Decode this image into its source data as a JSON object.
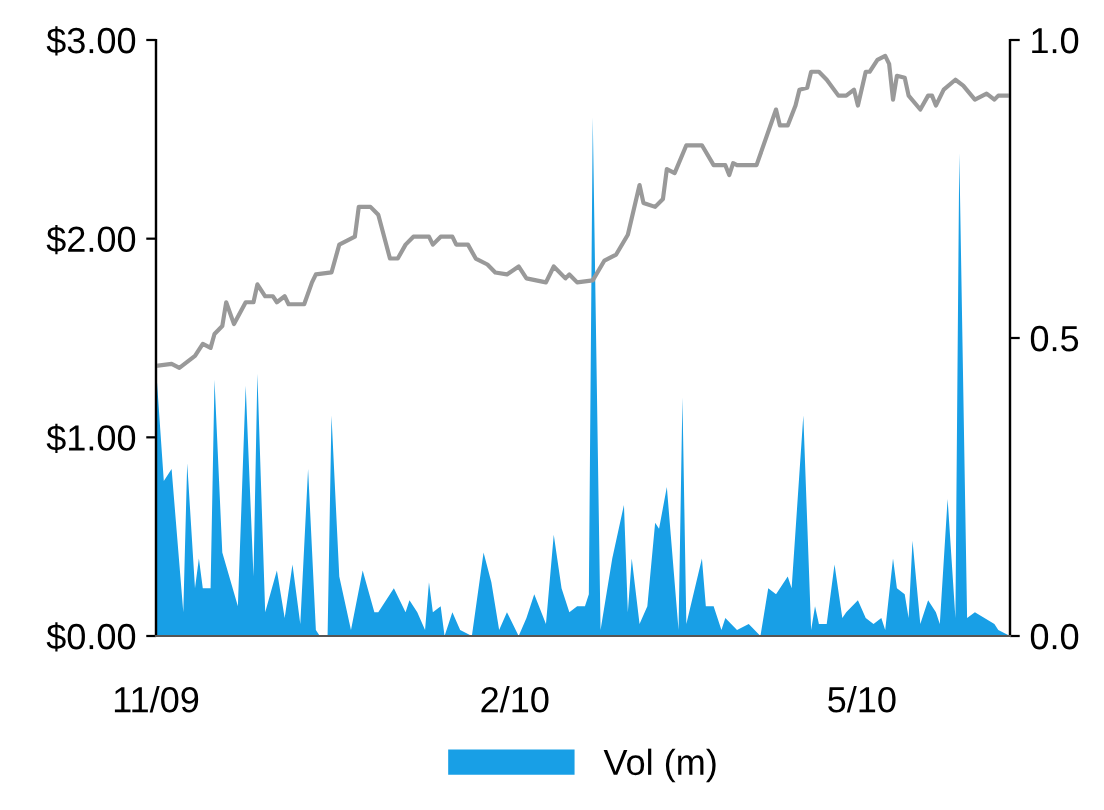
{
  "chart_data": {
    "type": "line",
    "xlim": [
      "2009-11-01",
      "2010-06-08"
    ],
    "xticks": [
      {
        "value": "2009-11-01",
        "label": "11/09"
      },
      {
        "value": "2010-02-01",
        "label": "2/10"
      },
      {
        "value": "2010-05-01",
        "label": "5/10"
      }
    ],
    "ylim": [
      0,
      3
    ],
    "yticks": [
      {
        "value": 0,
        "label": "$0.00"
      },
      {
        "value": 1,
        "label": "$1.00"
      },
      {
        "value": 2,
        "label": "$2.00"
      },
      {
        "value": 3,
        "label": "$3.00"
      }
    ],
    "y2lim": [
      0,
      1
    ],
    "y2ticks": [
      {
        "value": 0,
        "label": "0.0"
      },
      {
        "value": 0.5,
        "label": "0.5"
      },
      {
        "value": 1,
        "label": "1.0"
      }
    ],
    "grid": false,
    "legend": "bottom",
    "marker": "none",
    "line_style": "solid",
    "series": [
      {
        "name": "Vol (m)",
        "type": "area",
        "axis": "y2",
        "color": "#189fe6",
        "x": [
          "2009-11-01",
          "2009-11-03",
          "2009-11-05",
          "2009-11-08",
          "2009-11-09",
          "2009-11-11",
          "2009-11-12",
          "2009-11-13",
          "2009-11-15",
          "2009-11-16",
          "2009-11-18",
          "2009-11-22",
          "2009-11-24",
          "2009-11-26",
          "2009-11-27",
          "2009-11-29",
          "2009-12-02",
          "2009-12-04",
          "2009-12-06",
          "2009-12-08",
          "2009-12-10",
          "2009-12-12",
          "2009-12-13",
          "2009-12-15",
          "2009-12-16",
          "2009-12-18",
          "2009-12-21",
          "2009-12-24",
          "2009-12-27",
          "2009-12-28",
          "2010-01-01",
          "2010-01-04",
          "2010-01-05",
          "2010-01-07",
          "2010-01-09",
          "2010-01-10",
          "2010-01-11",
          "2010-01-13",
          "2010-01-14",
          "2010-01-16",
          "2010-01-18",
          "2010-01-21",
          "2010-01-24",
          "2010-01-26",
          "2010-01-28",
          "2010-01-30",
          "2010-02-02",
          "2010-02-04",
          "2010-02-06",
          "2010-02-09",
          "2010-02-11",
          "2010-02-13",
          "2010-02-15",
          "2010-02-17",
          "2010-02-19",
          "2010-02-20",
          "2010-02-21",
          "2010-02-23",
          "2010-02-26",
          "2010-03-01",
          "2010-03-02",
          "2010-03-03",
          "2010-03-05",
          "2010-03-07",
          "2010-03-09",
          "2010-03-10",
          "2010-03-12",
          "2010-03-13",
          "2010-03-15",
          "2010-03-16",
          "2010-03-17",
          "2010-03-21",
          "2010-03-22",
          "2010-03-24",
          "2010-03-26",
          "2010-03-27",
          "2010-03-30",
          "2010-04-02",
          "2010-04-05",
          "2010-04-07",
          "2010-04-09",
          "2010-04-12",
          "2010-04-13",
          "2010-04-16",
          "2010-04-18",
          "2010-04-19",
          "2010-04-20",
          "2010-04-22",
          "2010-04-24",
          "2010-04-26",
          "2010-04-27",
          "2010-04-30",
          "2010-05-02",
          "2010-05-04",
          "2010-05-06",
          "2010-05-07",
          "2010-05-09",
          "2010-05-10",
          "2010-05-12",
          "2010-05-13",
          "2010-05-14",
          "2010-05-16",
          "2010-05-18",
          "2010-05-20",
          "2010-05-21",
          "2010-05-23",
          "2010-05-25",
          "2010-05-26",
          "2010-05-28",
          "2010-05-30",
          "2010-06-04",
          "2010-06-05",
          "2010-06-08"
        ],
        "values": [
          0.45,
          0.26,
          0.28,
          0.04,
          0.29,
          0.08,
          0.13,
          0.08,
          0.08,
          0.43,
          0.14,
          0.05,
          0.42,
          0.1,
          0.44,
          0.04,
          0.11,
          0.03,
          0.12,
          0.02,
          0.28,
          0.01,
          0,
          0,
          0.37,
          0.1,
          0.01,
          0.11,
          0.04,
          0.04,
          0.08,
          0.04,
          0.06,
          0.04,
          0.01,
          0.09,
          0.04,
          0.05,
          0,
          0.04,
          0.01,
          0,
          0.14,
          0.09,
          0.01,
          0.04,
          0,
          0.03,
          0.07,
          0.02,
          0.17,
          0.08,
          0.04,
          0.05,
          0.05,
          0.07,
          0.87,
          0.01,
          0.13,
          0.22,
          0.04,
          0.13,
          0.02,
          0.05,
          0.19,
          0.18,
          0.25,
          0.17,
          0.01,
          0.4,
          0.02,
          0.13,
          0.05,
          0.05,
          0.01,
          0.03,
          0.01,
          0.02,
          0,
          0.08,
          0.07,
          0.1,
          0.08,
          0.37,
          0.01,
          0.05,
          0.02,
          0.02,
          0.12,
          0.03,
          0.04,
          0.06,
          0.03,
          0.02,
          0.03,
          0.01,
          0.13,
          0.08,
          0.07,
          0.03,
          0.16,
          0.02,
          0.06,
          0.04,
          0.02,
          0.23,
          0.03,
          0.81,
          0.03,
          0.04,
          0.02,
          0.01,
          0
        ]
      },
      {
        "color": "#999999",
        "x": [
          "2009-11-01",
          "2009-11-05",
          "2009-11-07",
          "2009-11-09",
          "2009-11-11",
          "2009-11-13",
          "2009-11-15",
          "2009-11-16",
          "2009-11-18",
          "2009-11-19",
          "2009-11-21",
          "2009-11-24",
          "2009-11-26",
          "2009-11-27",
          "2009-11-29",
          "2009-12-01",
          "2009-12-02",
          "2009-12-04",
          "2009-12-05",
          "2009-12-09",
          "2009-12-11",
          "2009-12-12",
          "2009-12-16",
          "2009-12-18",
          "2009-12-22",
          "2009-12-23",
          "2009-12-26",
          "2009-12-28",
          "2009-12-31",
          "2010-01-02",
          "2010-01-04",
          "2010-01-06",
          "2010-01-10",
          "2010-01-11",
          "2010-01-13",
          "2010-01-16",
          "2010-01-17",
          "2010-01-20",
          "2010-01-22",
          "2010-01-25",
          "2010-01-27",
          "2010-01-30",
          "2010-02-02",
          "2010-02-04",
          "2010-02-09",
          "2010-02-11",
          "2010-02-14",
          "2010-02-15",
          "2010-02-17",
          "2010-02-21",
          "2010-02-24",
          "2010-02-27",
          "2010-03-02",
          "2010-03-05",
          "2010-03-06",
          "2010-03-09",
          "2010-03-11",
          "2010-03-12",
          "2010-03-14",
          "2010-03-17",
          "2010-03-21",
          "2010-03-24",
          "2010-03-27",
          "2010-03-28",
          "2010-03-29",
          "2010-03-30",
          "2010-04-04",
          "2010-04-09",
          "2010-04-10",
          "2010-04-12",
          "2010-04-14",
          "2010-04-15",
          "2010-04-17",
          "2010-04-18",
          "2010-04-20",
          "2010-04-22",
          "2010-04-25",
          "2010-04-27",
          "2010-04-29",
          "2010-04-30",
          "2010-05-02",
          "2010-05-03",
          "2010-05-05",
          "2010-05-07",
          "2010-05-08",
          "2010-05-09",
          "2010-05-10",
          "2010-05-12",
          "2010-05-13",
          "2010-05-16",
          "2010-05-18",
          "2010-05-19",
          "2010-05-20",
          "2010-05-22",
          "2010-05-25",
          "2010-05-27",
          "2010-05-30",
          "2010-06-02",
          "2010-06-04",
          "2010-06-05",
          "2010-06-08"
        ],
        "values": [
          1.36,
          1.37,
          1.35,
          1.38,
          1.41,
          1.47,
          1.45,
          1.52,
          1.56,
          1.68,
          1.57,
          1.68,
          1.68,
          1.77,
          1.71,
          1.71,
          1.68,
          1.71,
          1.67,
          1.67,
          1.78,
          1.82,
          1.83,
          1.97,
          2.01,
          2.16,
          2.16,
          2.12,
          1.9,
          1.9,
          1.97,
          2.01,
          2.01,
          1.97,
          2.01,
          2.01,
          1.97,
          1.97,
          1.9,
          1.87,
          1.83,
          1.82,
          1.86,
          1.8,
          1.78,
          1.86,
          1.8,
          1.82,
          1.78,
          1.79,
          1.89,
          1.92,
          2.02,
          2.27,
          2.18,
          2.16,
          2.2,
          2.35,
          2.33,
          2.47,
          2.47,
          2.37,
          2.37,
          2.32,
          2.38,
          2.37,
          2.37,
          2.65,
          2.57,
          2.57,
          2.67,
          2.75,
          2.76,
          2.84,
          2.84,
          2.8,
          2.72,
          2.72,
          2.75,
          2.67,
          2.84,
          2.84,
          2.9,
          2.92,
          2.88,
          2.7,
          2.82,
          2.81,
          2.72,
          2.65,
          2.72,
          2.72,
          2.67,
          2.75,
          2.8,
          2.77,
          2.7,
          2.73,
          2.7,
          2.72,
          2.72
        ]
      }
    ]
  }
}
